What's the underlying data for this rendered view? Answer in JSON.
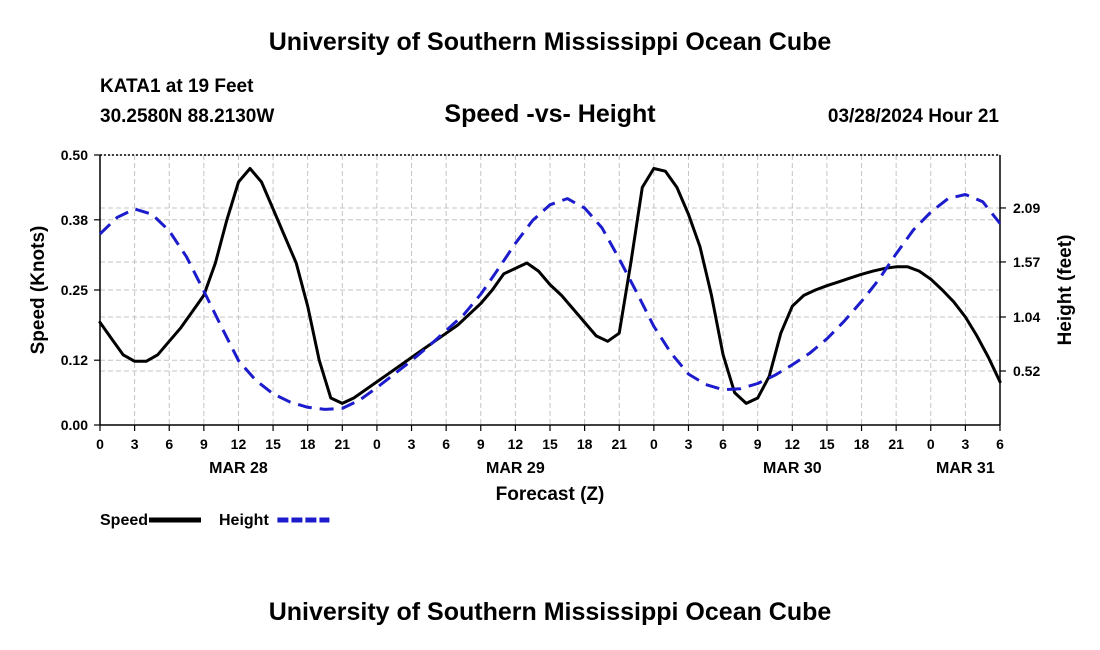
{
  "header": {
    "title": "University of Southern Mississippi Ocean Cube",
    "station": "KATA1 at 19 Feet",
    "coords": "30.2580N  88.2130W",
    "subtitle": "Speed -vs- Height",
    "datetime": "03/28/2024 Hour 21"
  },
  "footer": {
    "title": "University of Southern Mississippi Ocean Cube"
  },
  "chart_data": {
    "type": "line",
    "title": "Speed -vs- Height",
    "xlabel": "Forecast (Z)",
    "ylabel": "Speed (Knots)",
    "y2label": "Height (feet)",
    "x_range_hours": [
      0,
      78
    ],
    "x_ticks": [
      {
        "h": 0,
        "label": "0"
      },
      {
        "h": 3,
        "label": "3"
      },
      {
        "h": 6,
        "label": "6"
      },
      {
        "h": 9,
        "label": "9"
      },
      {
        "h": 12,
        "label": "12"
      },
      {
        "h": 15,
        "label": "15"
      },
      {
        "h": 18,
        "label": "18"
      },
      {
        "h": 21,
        "label": "21"
      },
      {
        "h": 24,
        "label": "0"
      },
      {
        "h": 27,
        "label": "3"
      },
      {
        "h": 30,
        "label": "6"
      },
      {
        "h": 33,
        "label": "9"
      },
      {
        "h": 36,
        "label": "12"
      },
      {
        "h": 39,
        "label": "15"
      },
      {
        "h": 42,
        "label": "18"
      },
      {
        "h": 45,
        "label": "21"
      },
      {
        "h": 48,
        "label": "0"
      },
      {
        "h": 51,
        "label": "3"
      },
      {
        "h": 54,
        "label": "6"
      },
      {
        "h": 57,
        "label": "9"
      },
      {
        "h": 60,
        "label": "12"
      },
      {
        "h": 63,
        "label": "15"
      },
      {
        "h": 66,
        "label": "18"
      },
      {
        "h": 69,
        "label": "21"
      },
      {
        "h": 72,
        "label": "0"
      },
      {
        "h": 75,
        "label": "3"
      },
      {
        "h": 78,
        "label": "6"
      }
    ],
    "date_labels": [
      {
        "h": 12,
        "label": "MAR 28"
      },
      {
        "h": 36,
        "label": "MAR 29"
      },
      {
        "h": 60,
        "label": "MAR 30"
      },
      {
        "h": 75,
        "label": "MAR 31"
      }
    ],
    "y_left": {
      "min": 0,
      "max": 0.5,
      "ticks": [
        "0.00",
        "0.12",
        "0.25",
        "0.38",
        "0.50"
      ]
    },
    "y_right": {
      "min": 0,
      "max": 2.6,
      "ticks": [
        "0.52",
        "1.04",
        "1.57",
        "2.09"
      ]
    },
    "series": [
      {
        "name": "Speed",
        "axis": "left",
        "color": "#000000",
        "dash": "solid",
        "points": [
          [
            0,
            0.19
          ],
          [
            1,
            0.16
          ],
          [
            2,
            0.13
          ],
          [
            3,
            0.118
          ],
          [
            4,
            0.118
          ],
          [
            5,
            0.13
          ],
          [
            6,
            0.155
          ],
          [
            7,
            0.18
          ],
          [
            8,
            0.21
          ],
          [
            9,
            0.24
          ],
          [
            10,
            0.3
          ],
          [
            11,
            0.38
          ],
          [
            12,
            0.45
          ],
          [
            13,
            0.475
          ],
          [
            14,
            0.45
          ],
          [
            15,
            0.4
          ],
          [
            16,
            0.35
          ],
          [
            17,
            0.3
          ],
          [
            18,
            0.22
          ],
          [
            19,
            0.12
          ],
          [
            20,
            0.05
          ],
          [
            21,
            0.04
          ],
          [
            22,
            0.05
          ],
          [
            23,
            0.065
          ],
          [
            24,
            0.08
          ],
          [
            25,
            0.095
          ],
          [
            26,
            0.11
          ],
          [
            27,
            0.125
          ],
          [
            28,
            0.14
          ],
          [
            29,
            0.155
          ],
          [
            30,
            0.17
          ],
          [
            31,
            0.185
          ],
          [
            32,
            0.205
          ],
          [
            33,
            0.225
          ],
          [
            34,
            0.25
          ],
          [
            35,
            0.28
          ],
          [
            36,
            0.29
          ],
          [
            37,
            0.3
          ],
          [
            38,
            0.285
          ],
          [
            39,
            0.26
          ],
          [
            40,
            0.24
          ],
          [
            41,
            0.215
          ],
          [
            42,
            0.19
          ],
          [
            43,
            0.165
          ],
          [
            44,
            0.155
          ],
          [
            45,
            0.17
          ],
          [
            46,
            0.3
          ],
          [
            47,
            0.44
          ],
          [
            48,
            0.475
          ],
          [
            49,
            0.47
          ],
          [
            50,
            0.44
          ],
          [
            51,
            0.39
          ],
          [
            52,
            0.33
          ],
          [
            53,
            0.24
          ],
          [
            54,
            0.13
          ],
          [
            55,
            0.06
          ],
          [
            56,
            0.04
          ],
          [
            57,
            0.05
          ],
          [
            58,
            0.09
          ],
          [
            59,
            0.17
          ],
          [
            60,
            0.22
          ],
          [
            61,
            0.24
          ],
          [
            62,
            0.25
          ],
          [
            63,
            0.258
          ],
          [
            64,
            0.265
          ],
          [
            65,
            0.272
          ],
          [
            66,
            0.279
          ],
          [
            67,
            0.285
          ],
          [
            68,
            0.29
          ],
          [
            69,
            0.293
          ],
          [
            70,
            0.293
          ],
          [
            71,
            0.285
          ],
          [
            72,
            0.27
          ],
          [
            73,
            0.25
          ],
          [
            74,
            0.228
          ],
          [
            75,
            0.2
          ],
          [
            76,
            0.165
          ],
          [
            77,
            0.125
          ],
          [
            78,
            0.08
          ]
        ]
      },
      {
        "name": "Height",
        "axis": "right",
        "color": "#1c1ccc",
        "dash": "dashed",
        "points": [
          [
            0,
            1.84
          ],
          [
            1.5,
            2.0
          ],
          [
            3,
            2.08
          ],
          [
            4.5,
            2.03
          ],
          [
            6,
            1.87
          ],
          [
            7.5,
            1.62
          ],
          [
            9,
            1.29
          ],
          [
            10.5,
            0.95
          ],
          [
            12,
            0.62
          ],
          [
            13.5,
            0.43
          ],
          [
            15,
            0.3
          ],
          [
            16.5,
            0.22
          ],
          [
            18,
            0.17
          ],
          [
            19.5,
            0.15
          ],
          [
            21,
            0.16
          ],
          [
            22.5,
            0.24
          ],
          [
            24,
            0.36
          ],
          [
            25.5,
            0.49
          ],
          [
            27,
            0.62
          ],
          [
            28.5,
            0.76
          ],
          [
            30,
            0.91
          ],
          [
            31.5,
            1.06
          ],
          [
            33,
            1.26
          ],
          [
            34.5,
            1.5
          ],
          [
            36,
            1.75
          ],
          [
            37.5,
            1.97
          ],
          [
            39,
            2.12
          ],
          [
            40.5,
            2.18
          ],
          [
            42,
            2.09
          ],
          [
            43.5,
            1.9
          ],
          [
            45,
            1.6
          ],
          [
            46.5,
            1.28
          ],
          [
            48,
            0.95
          ],
          [
            49.5,
            0.69
          ],
          [
            51,
            0.49
          ],
          [
            52.5,
            0.39
          ],
          [
            54,
            0.34
          ],
          [
            55.5,
            0.35
          ],
          [
            57,
            0.4
          ],
          [
            58.5,
            0.48
          ],
          [
            60,
            0.58
          ],
          [
            61.5,
            0.69
          ],
          [
            63,
            0.83
          ],
          [
            64.5,
            1.0
          ],
          [
            66,
            1.19
          ],
          [
            67.5,
            1.4
          ],
          [
            69,
            1.65
          ],
          [
            70.5,
            1.88
          ],
          [
            72,
            2.05
          ],
          [
            73.5,
            2.18
          ],
          [
            75,
            2.22
          ],
          [
            76.5,
            2.15
          ],
          [
            78,
            1.94
          ]
        ]
      }
    ],
    "legend": [
      {
        "name": "Speed",
        "color": "#000000",
        "dash": "solid"
      },
      {
        "name": "Height",
        "color": "#1c1ccc",
        "dash": "dashed"
      }
    ],
    "grid": true
  }
}
